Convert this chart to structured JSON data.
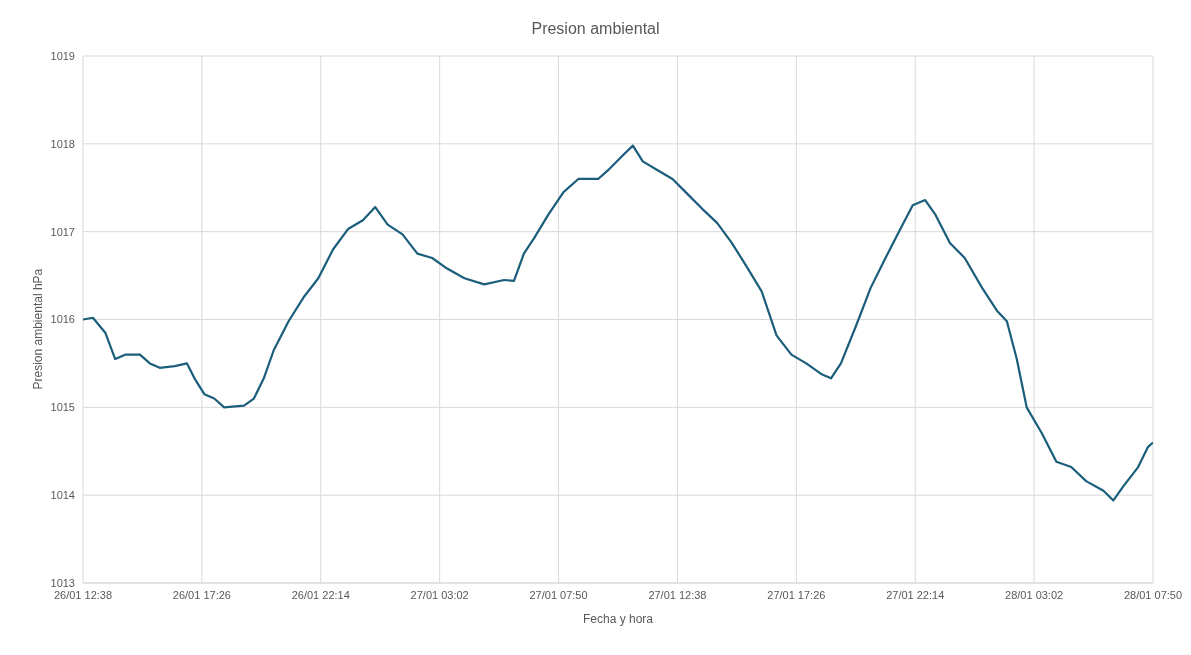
{
  "chart_data": {
    "type": "line",
    "title": "Presion ambiental",
    "xlabel": "Fecha y hora",
    "ylabel": "Presion ambiental hPa",
    "x": [
      "--01-26T12:38",
      "--01-26T13:02",
      "--01-26T13:32",
      "--01-26T13:56",
      "--01-26T14:20",
      "--01-26T14:56",
      "--01-26T15:20",
      "--01-26T15:44",
      "--01-26T16:20",
      "--01-26T16:50",
      "--01-26T17:08",
      "--01-26T17:32",
      "--01-26T17:56",
      "--01-26T18:20",
      "--01-26T19:08",
      "--01-26T19:32",
      "--01-26T19:56",
      "--01-26T20:20",
      "--01-26T20:56",
      "--01-26T21:32",
      "--01-26T22:08",
      "--01-26T22:44",
      "--01-26T23:20",
      "--01-26T23:56",
      "--01-27T00:26",
      "--01-27T00:56",
      "--01-27T01:32",
      "--01-27T02:08",
      "--01-27T02:44",
      "--01-27T03:20",
      "--01-27T04:02",
      "--01-27T04:50",
      "--01-27T05:38",
      "--01-27T06:02",
      "--01-27T06:26",
      "--01-27T06:50",
      "--01-27T07:26",
      "--01-27T08:02",
      "--01-27T08:38",
      "--01-27T09:26",
      "--01-27T09:50",
      "--01-27T10:26",
      "--01-27T10:50",
      "--01-27T11:14",
      "--01-27T11:50",
      "--01-27T12:26",
      "--01-27T13:02",
      "--01-27T13:38",
      "--01-27T14:14",
      "--01-27T14:50",
      "--01-27T15:26",
      "--01-27T16:02",
      "--01-27T16:38",
      "--01-27T17:14",
      "--01-27T17:50",
      "--01-27T18:26",
      "--01-27T18:50",
      "--01-27T19:14",
      "--01-27T19:50",
      "--01-27T20:26",
      "--01-27T21:02",
      "--01-27T21:38",
      "--01-27T22:08",
      "--01-27T22:38",
      "--01-27T23:02",
      "--01-27T23:38",
      "--01-28T00:14",
      "--01-28T00:56",
      "--01-28T01:32",
      "--01-28T01:56",
      "--01-28T02:20",
      "--01-28T02:44",
      "--01-28T03:20",
      "--01-28T03:56",
      "--01-28T04:32",
      "--01-28T05:08",
      "--01-28T05:50",
      "--01-28T06:14",
      "--01-28T06:38",
      "--01-28T07:14",
      "--01-28T07:38",
      "--01-28T07:50"
    ],
    "series": [
      {
        "color": "#1b5e7b",
        "values": [
          1016.0,
          1016.02,
          1015.85,
          1015.55,
          1015.6,
          1015.6,
          1015.5,
          1015.45,
          1015.47,
          1015.5,
          1015.33,
          1015.15,
          1015.1,
          1015.0,
          1015.02,
          1015.1,
          1015.33,
          1015.65,
          1015.98,
          1016.25,
          1016.47,
          1016.8,
          1017.03,
          1017.13,
          1017.28,
          1017.08,
          1016.97,
          1016.75,
          1016.7,
          1016.58,
          1016.47,
          1016.4,
          1016.45,
          1016.44,
          1016.75,
          1016.92,
          1017.2,
          1017.45,
          1017.6,
          1017.6,
          1017.7,
          1017.87,
          1017.98,
          1017.8,
          1017.7,
          1017.6,
          1017.43,
          1017.26,
          1017.1,
          1016.87,
          1016.6,
          1016.32,
          1015.82,
          1015.6,
          1015.5,
          1015.38,
          1015.33,
          1015.5,
          1015.92,
          1016.36,
          1016.7,
          1017.03,
          1017.3,
          1017.36,
          1017.2,
          1016.87,
          1016.7,
          1016.36,
          1016.1,
          1015.98,
          1015.55,
          1015.0,
          1014.71,
          1014.38,
          1014.32,
          1014.16,
          1014.05,
          1013.94,
          1014.1,
          1014.32,
          1014.55,
          1014.6
        ]
      }
    ],
    "xlim": [
      "--01-26T12:38",
      "--01-28T07:50"
    ],
    "xticks": [
      {
        "value": "--01-26T12:38",
        "label": "26/01 12:38"
      },
      {
        "value": "--01-26T17:26",
        "label": "26/01 17:26"
      },
      {
        "value": "--01-26T22:14",
        "label": "26/01 22:14"
      },
      {
        "value": "--01-27T03:02",
        "label": "27/01 03:02"
      },
      {
        "value": "--01-27T07:50",
        "label": "27/01 07:50"
      },
      {
        "value": "--01-27T12:38",
        "label": "27/01 12:38"
      },
      {
        "value": "--01-27T17:26",
        "label": "27/01 17:26"
      },
      {
        "value": "--01-27T22:14",
        "label": "27/01 22:14"
      },
      {
        "value": "--01-28T03:02",
        "label": "28/01 03:02"
      },
      {
        "value": "--01-28T07:50",
        "label": "28/01 07:50"
      }
    ],
    "ylim": [
      1013,
      1019
    ],
    "yticks": [
      1013,
      1014,
      1015,
      1016,
      1017,
      1018,
      1019
    ],
    "grid": true,
    "legend": false,
    "marker": "none",
    "line_style": "solid"
  }
}
